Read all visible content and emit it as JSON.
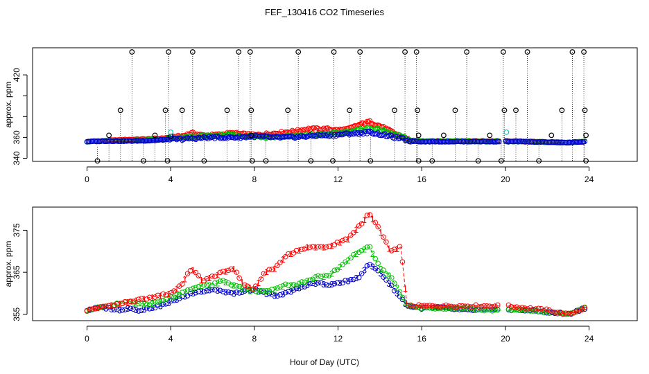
{
  "chart_data": [
    {
      "type": "scatter",
      "title": "FEF_130416  CO2 Timeseries",
      "xlabel": "",
      "ylabel": "approx. ppm",
      "xlim": [
        -2.6,
        26.3
      ],
      "ylim": [
        337,
        446
      ],
      "xticks": [
        0,
        4,
        8,
        12,
        16,
        20,
        24
      ],
      "yticks": [
        340,
        360,
        380,
        400,
        420
      ],
      "ytick_labels": [
        "340",
        "360",
        "",
        "",
        "420"
      ],
      "grid": false,
      "axis_range": [
        0,
        23.85
      ],
      "clip_high_value": 442,
      "clip_low_value": 337.5,
      "outlier_drops": [
        {
          "x": 0.5,
          "top": 351
        },
        {
          "x": 1.05,
          "top": 356
        },
        {
          "x": 1.6,
          "top": 386
        },
        {
          "x": 2.15,
          "top": 442
        },
        {
          "x": 2.7,
          "top": 354
        },
        {
          "x": 3.25,
          "top": 362
        },
        {
          "x": 3.75,
          "top": 386
        },
        {
          "x": 3.9,
          "top": 442
        },
        {
          "x": 4.55,
          "top": 386
        },
        {
          "x": 5.05,
          "top": 442
        },
        {
          "x": 5.6,
          "top": 356
        },
        {
          "x": 6.7,
          "top": 386
        },
        {
          "x": 7.25,
          "top": 442
        },
        {
          "x": 7.8,
          "top": 442
        },
        {
          "x": 7.85,
          "top": 386
        },
        {
          "x": 8.55,
          "top": 360
        },
        {
          "x": 9.6,
          "top": 386
        },
        {
          "x": 10.1,
          "top": 442
        },
        {
          "x": 10.7,
          "top": 360
        },
        {
          "x": 11.8,
          "top": 442
        },
        {
          "x": 12.55,
          "top": 386
        },
        {
          "x": 13.05,
          "top": 442
        },
        {
          "x": 13.55,
          "top": 362
        },
        {
          "x": 14.7,
          "top": 386
        },
        {
          "x": 15.2,
          "top": 442
        },
        {
          "x": 15.75,
          "top": 442
        },
        {
          "x": 15.8,
          "top": 386
        },
        {
          "x": 16.5,
          "top": 356
        },
        {
          "x": 17.6,
          "top": 386
        },
        {
          "x": 18.15,
          "top": 442
        },
        {
          "x": 18.7,
          "top": 354
        },
        {
          "x": 19.8,
          "top": 356
        },
        {
          "x": 19.9,
          "top": 442
        },
        {
          "x": 19.95,
          "top": 386
        },
        {
          "x": 20.5,
          "top": 386
        },
        {
          "x": 21.05,
          "top": 442
        },
        {
          "x": 21.6,
          "top": 354
        },
        {
          "x": 22.7,
          "top": 386
        },
        {
          "x": 23.2,
          "top": 442
        },
        {
          "x": 23.75,
          "top": 442
        },
        {
          "x": 23.8,
          "top": 386
        }
      ],
      "outlier_points": [
        {
          "x": 0.5,
          "y": 337.5
        },
        {
          "x": 1.05,
          "y": 362
        },
        {
          "x": 1.6,
          "y": 386
        },
        {
          "x": 2.15,
          "y": 442
        },
        {
          "x": 2.7,
          "y": 337.5
        },
        {
          "x": 3.25,
          "y": 362
        },
        {
          "x": 3.75,
          "y": 386
        },
        {
          "x": 3.85,
          "y": 337.5
        },
        {
          "x": 3.9,
          "y": 442
        },
        {
          "x": 4.55,
          "y": 386
        },
        {
          "x": 5.05,
          "y": 442
        },
        {
          "x": 5.6,
          "y": 337.5
        },
        {
          "x": 6.7,
          "y": 386
        },
        {
          "x": 7.25,
          "y": 442
        },
        {
          "x": 7.8,
          "y": 442
        },
        {
          "x": 7.85,
          "y": 386
        },
        {
          "x": 7.9,
          "y": 337.5
        },
        {
          "x": 8.55,
          "y": 337.5
        },
        {
          "x": 9.6,
          "y": 386
        },
        {
          "x": 10.1,
          "y": 442
        },
        {
          "x": 10.7,
          "y": 337.5
        },
        {
          "x": 11.8,
          "y": 442
        },
        {
          "x": 11.75,
          "y": 337.5
        },
        {
          "x": 12.55,
          "y": 386
        },
        {
          "x": 13.05,
          "y": 442
        },
        {
          "x": 13.55,
          "y": 337.5
        },
        {
          "x": 14.7,
          "y": 386
        },
        {
          "x": 15.2,
          "y": 442
        },
        {
          "x": 15.75,
          "y": 442
        },
        {
          "x": 15.8,
          "y": 386
        },
        {
          "x": 15.85,
          "y": 337.5
        },
        {
          "x": 16.5,
          "y": 337.5
        },
        {
          "x": 17.6,
          "y": 386
        },
        {
          "x": 18.15,
          "y": 442
        },
        {
          "x": 18.7,
          "y": 337.5
        },
        {
          "x": 19.8,
          "y": 337.5
        },
        {
          "x": 19.9,
          "y": 442
        },
        {
          "x": 19.95,
          "y": 386
        },
        {
          "x": 20.5,
          "y": 386
        },
        {
          "x": 21.05,
          "y": 442
        },
        {
          "x": 21.6,
          "y": 337.5
        },
        {
          "x": 22.7,
          "y": 386
        },
        {
          "x": 23.2,
          "y": 442
        },
        {
          "x": 23.75,
          "y": 442
        },
        {
          "x": 23.8,
          "y": 386
        },
        {
          "x": 23.85,
          "y": 337.5
        },
        {
          "x": 4.0,
          "y": 361
        },
        {
          "x": 7.85,
          "y": 362
        },
        {
          "x": 15.85,
          "y": 362
        },
        {
          "x": 17.05,
          "y": 362
        },
        {
          "x": 19.25,
          "y": 362
        },
        {
          "x": 22.2,
          "y": 362
        },
        {
          "x": 23.85,
          "y": 362
        }
      ],
      "cyan_points": [
        {
          "x": 4.0,
          "y": 365
        },
        {
          "x": 20.05,
          "y": 365
        }
      ],
      "series": [
        {
          "name": "1",
          "color": "#ff0000",
          "x": [
            0,
            1,
            2,
            3,
            3.5,
            4,
            4.5,
            5,
            5.5,
            6,
            6.5,
            7,
            7.5,
            8,
            8.5,
            9,
            9.5,
            10,
            10.5,
            11,
            11.5,
            12,
            12.5,
            13,
            13.5,
            14,
            14.5,
            15,
            15.5,
            16,
            17,
            18,
            19,
            19.8,
            20.1,
            21,
            22,
            23,
            23.8
          ],
          "values": [
            356,
            357,
            358,
            358.5,
            359,
            360,
            361,
            364,
            362,
            362,
            363,
            364,
            363,
            362,
            363,
            364,
            365,
            366,
            368,
            368,
            368,
            367,
            368,
            372,
            375,
            371,
            366,
            361,
            357,
            356.5,
            356.5,
            356.5,
            356.5,
            356.5,
            356.5,
            356,
            355.5,
            355,
            356
          ]
        },
        {
          "name": "2",
          "color": "#00c000",
          "x": [
            0,
            1,
            2,
            3,
            3.5,
            4,
            4.5,
            5,
            5.5,
            6,
            6.5,
            7,
            7.5,
            8,
            8.5,
            9,
            9.5,
            10,
            10.5,
            11,
            11.5,
            12,
            12.5,
            13,
            13.5,
            14,
            14.5,
            15,
            15.5,
            16,
            17,
            18,
            19,
            19.8,
            20.1,
            21,
            22,
            23,
            23.8
          ],
          "values": [
            356,
            356.5,
            357,
            357.5,
            358,
            359,
            359.5,
            360,
            361,
            361,
            362,
            362,
            361,
            361,
            360.5,
            360.5,
            361,
            361.5,
            362,
            362.5,
            363,
            364,
            365.5,
            367,
            369,
            367,
            364,
            361,
            357,
            356.5,
            356.5,
            356.5,
            356,
            356,
            356,
            356,
            355.5,
            355,
            356
          ]
        },
        {
          "name": "3",
          "color": "#0000cc",
          "x": [
            0,
            1,
            2,
            3,
            3.5,
            4,
            4.5,
            5,
            5.5,
            6,
            6.5,
            7,
            7.5,
            8,
            8.5,
            9,
            9.5,
            10,
            10.5,
            11,
            11.5,
            12,
            12.5,
            13,
            13.5,
            14,
            14.5,
            15,
            15.5,
            16,
            17,
            18,
            19,
            19.8,
            20.1,
            21,
            22,
            23,
            23.8
          ],
          "values": [
            356,
            356.5,
            356.5,
            357,
            357.5,
            358,
            358.5,
            359,
            359.5,
            360,
            360,
            360,
            360.5,
            361,
            360.5,
            360,
            360,
            360.5,
            361,
            362,
            362,
            362.5,
            363.5,
            364,
            365,
            363,
            361,
            359,
            356.5,
            356,
            356,
            356,
            356,
            356,
            356,
            356,
            355.5,
            355,
            356
          ]
        }
      ]
    },
    {
      "type": "scatter",
      "title": "",
      "xlabel": "Hour of Day (UTC)",
      "ylabel": "approx. ppm",
      "xlim": [
        -2.6,
        26.3
      ],
      "ylim": [
        353.5,
        380.5
      ],
      "xticks": [
        0,
        4,
        8,
        12,
        16,
        20,
        24
      ],
      "yticks": [
        355,
        365,
        375
      ],
      "grid": false,
      "series": [
        {
          "name": "1",
          "color": "#ff0000",
          "x": [
            0,
            0.5,
            1,
            1.5,
            2,
            2.5,
            3,
            3.5,
            4,
            4.5,
            5,
            5.5,
            6,
            6.5,
            7,
            7.5,
            8,
            8.5,
            9,
            9.5,
            10,
            10.5,
            11,
            11.5,
            12,
            12.5,
            13,
            13.5,
            14,
            14.5,
            15,
            15.3,
            16,
            17,
            18,
            19,
            19.8,
            20.1,
            21,
            22,
            23,
            23.8
          ],
          "values": [
            356,
            356.5,
            357,
            357.5,
            358,
            358.5,
            359,
            359.5,
            360,
            362,
            366,
            363,
            364,
            365,
            366,
            362,
            361,
            365,
            366,
            369,
            370,
            371,
            371,
            371,
            372,
            373,
            376,
            379,
            375,
            370,
            371,
            357,
            357,
            357,
            357,
            357,
            357,
            357,
            356.5,
            356,
            355,
            356.5
          ]
        },
        {
          "name": "2",
          "color": "#00c000",
          "x": [
            0,
            0.5,
            1,
            1.5,
            2,
            2.5,
            3,
            3.5,
            4,
            4.5,
            5,
            5.5,
            6,
            6.5,
            7,
            7.5,
            8,
            8.5,
            9,
            9.5,
            10,
            10.5,
            11,
            11.5,
            12,
            12.5,
            13,
            13.5,
            14,
            14.5,
            15,
            15.3,
            16,
            17,
            18,
            19,
            19.8,
            20.1,
            21,
            22,
            23,
            23.8
          ],
          "values": [
            356,
            356.5,
            357,
            357.5,
            358,
            357.5,
            357.5,
            358,
            359,
            360,
            361,
            362,
            362,
            363,
            362,
            361,
            360.5,
            360.5,
            361,
            362,
            362,
            363,
            364,
            364,
            366,
            368,
            370,
            371,
            366,
            364,
            360,
            357,
            356.5,
            356.5,
            356.5,
            356,
            356,
            356,
            356,
            355.5,
            355,
            356.5
          ]
        },
        {
          "name": "3",
          "color": "#0000cc",
          "x": [
            0,
            0.5,
            1,
            1.5,
            2,
            2.5,
            3,
            3.5,
            4,
            4.5,
            5,
            5.5,
            6,
            6.5,
            7,
            7.5,
            8,
            8.5,
            9,
            9.5,
            10,
            10.5,
            11,
            11.5,
            12,
            12.5,
            13,
            13.5,
            14,
            14.5,
            15,
            15.3,
            16,
            17,
            18,
            19,
            19.8,
            20.1,
            21,
            22,
            23,
            23.8
          ],
          "values": [
            356,
            356.5,
            356.5,
            356,
            356.5,
            356,
            356.5,
            357,
            358,
            359,
            360,
            360.5,
            361,
            360.5,
            360,
            360.5,
            361,
            360,
            359.5,
            360,
            361,
            362,
            362.5,
            362,
            362.5,
            363,
            364,
            367,
            365,
            362,
            359,
            357,
            356.5,
            356.5,
            356,
            356,
            356,
            356,
            356,
            355.5,
            355,
            356.5
          ]
        }
      ]
    }
  ]
}
